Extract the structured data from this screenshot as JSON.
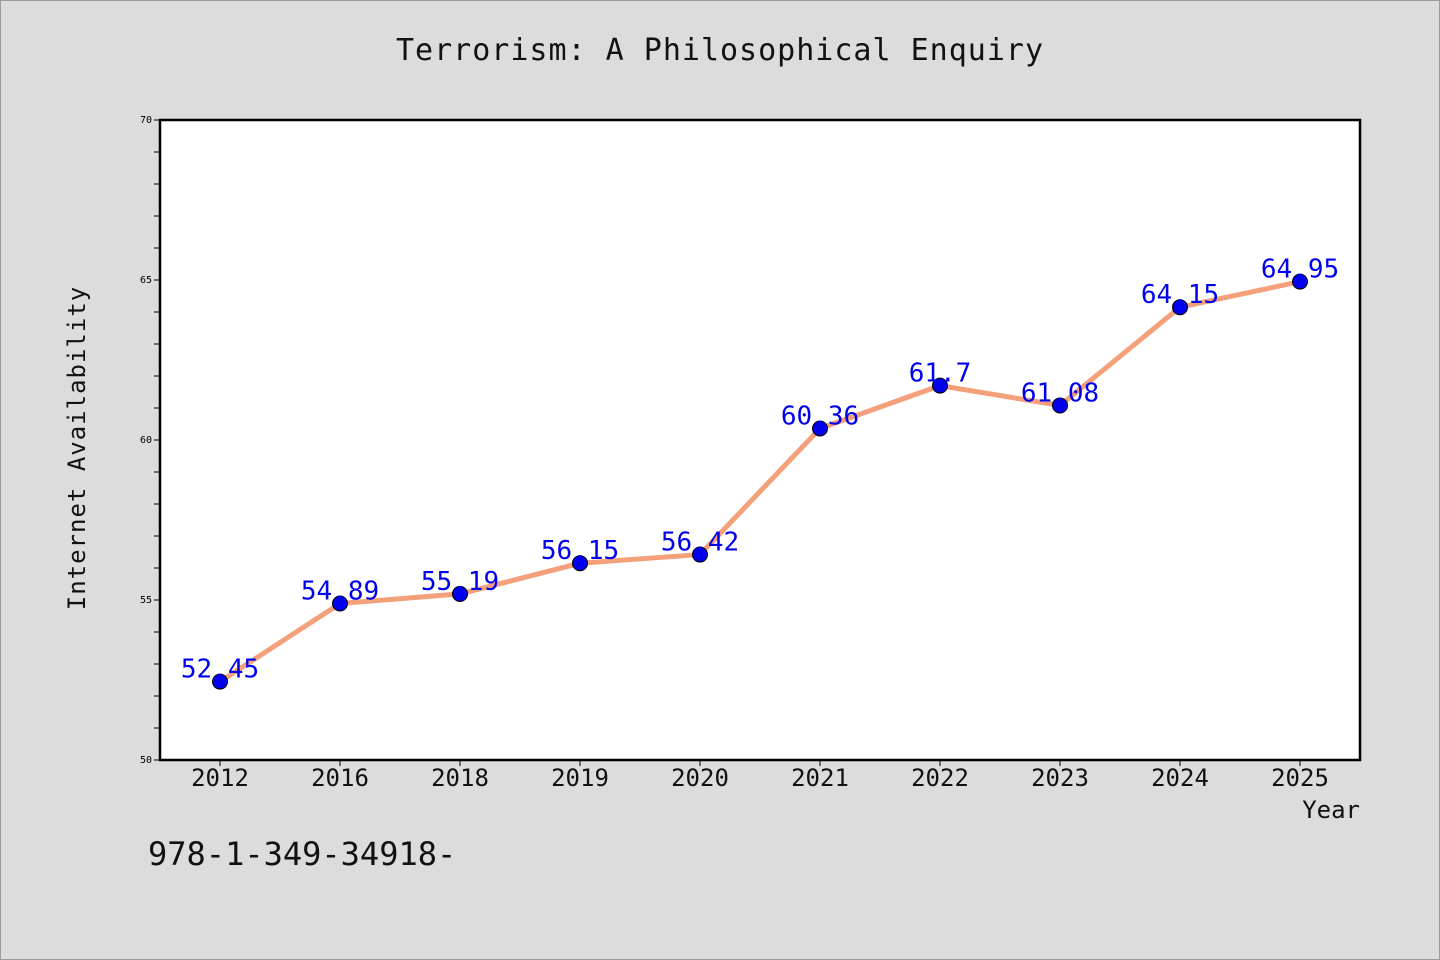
{
  "chart_data": {
    "type": "line",
    "title": "Terrorism: A Philosophical Enquiry",
    "xlabel": "Year",
    "ylabel": "Internet Availability",
    "categories": [
      "2012",
      "2016",
      "2018",
      "2019",
      "2020",
      "2021",
      "2022",
      "2023",
      "2024",
      "2025"
    ],
    "series": [
      {
        "values": [
          52.45,
          54.89,
          55.19,
          56.15,
          56.42,
          60.36,
          61.7,
          61.08,
          64.15,
          64.95
        ],
        "labels": [
          "52.45",
          "54.89",
          "55.19",
          "56.15",
          "56.42",
          "60.36",
          "61.7",
          "61.08",
          "64.15",
          "64.95"
        ],
        "line_color": "#f4a07a",
        "marker_color": "#0000ee"
      }
    ],
    "ylim": [
      50,
      70
    ],
    "yticks": [
      "50",
      "55",
      "60",
      "65",
      "70"
    ],
    "grid": false,
    "legend": "none"
  },
  "footer_text": "978-1-349-34918-"
}
